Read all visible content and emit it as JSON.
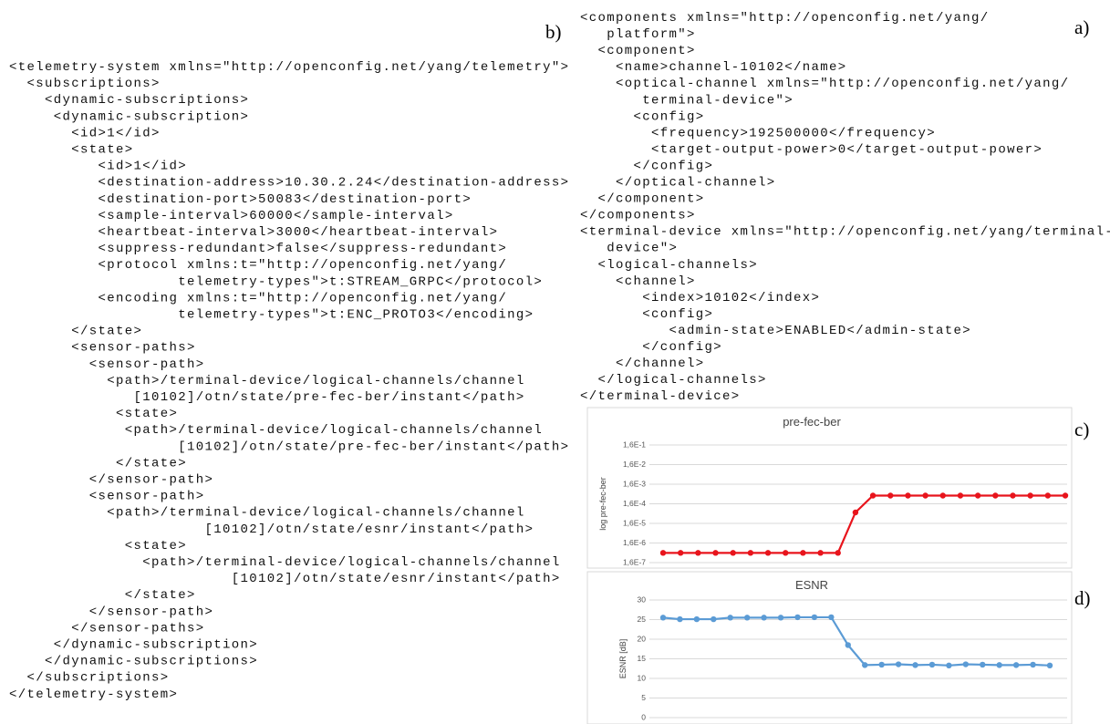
{
  "listings": [
    {
      "label": "b)",
      "lines": [
        "<telemetry-system xmlns=\"http://openconfig.net/yang/telemetry\">",
        "  <subscriptions>",
        "    <dynamic-subscriptions>",
        "     <dynamic-subscription>",
        "       <id>1</id>",
        "       <state>",
        "          <id>1</id>",
        "          <destination-address>10.30.2.24</destination-address>",
        "          <destination-port>50083</destination-port>",
        "          <sample-interval>60000</sample-interval>",
        "          <heartbeat-interval>3000</heartbeat-interval>",
        "          <suppress-redundant>false</suppress-redundant>",
        "          <protocol xmlns:t=\"http://openconfig.net/yang/",
        "                   telemetry-types\">t:STREAM_GRPC</protocol>",
        "          <encoding xmlns:t=\"http://openconfig.net/yang/",
        "                   telemetry-types\">t:ENC_PROTO3</encoding>",
        "       </state>",
        "       <sensor-paths>",
        "         <sensor-path>",
        "           <path>/terminal-device/logical-channels/channel",
        "              [10102]/otn/state/pre-fec-ber/instant</path>",
        "            <state>",
        "             <path>/terminal-device/logical-channels/channel",
        "                   [10102]/otn/state/pre-fec-ber/instant</path>",
        "            </state>",
        "         </sensor-path>",
        "         <sensor-path>",
        "           <path>/terminal-device/logical-channels/channel",
        "                      [10102]/otn/state/esnr/instant</path>",
        "             <state>",
        "               <path>/terminal-device/logical-channels/channel",
        "                         [10102]/otn/state/esnr/instant</path>",
        "             </state>",
        "         </sensor-path>",
        "       </sensor-paths>",
        "     </dynamic-subscription>",
        "    </dynamic-subscriptions>",
        "  </subscriptions>",
        "</telemetry-system>"
      ]
    },
    {
      "label": "a)",
      "lines": [
        "<components xmlns=\"http://openconfig.net/yang/",
        "   platform\">",
        "  <component>",
        "    <name>channel-10102</name>",
        "    <optical-channel xmlns=\"http://openconfig.net/yang/",
        "       terminal-device\">",
        "      <config>",
        "        <frequency>192500000</frequency>",
        "        <target-output-power>0</target-output-power>",
        "      </config>",
        "    </optical-channel>",
        "  </component>",
        "</components>",
        "<terminal-device xmlns=\"http://openconfig.net/yang/terminal-",
        "   device\">",
        "  <logical-channels>",
        "    <channel>",
        "       <index>10102</index>",
        "       <config>",
        "          <admin-state>ENABLED</admin-state>",
        "       </config>",
        "    </channel>",
        "  </logical-channels>",
        "</terminal-device>"
      ]
    }
  ],
  "chart_data": [
    {
      "type": "line",
      "label": "c)",
      "title": "pre-fec-ber",
      "ylabel": "log pre-fec-ber",
      "log_y": true,
      "grid": true,
      "color": "#e8141c",
      "categories": [
        null,
        null,
        null,
        null,
        null,
        null,
        null,
        null,
        null,
        null,
        null,
        null,
        null,
        null,
        null,
        null,
        null,
        null,
        null,
        null,
        null,
        null,
        null,
        null
      ],
      "values": [
        5e-07,
        5e-07,
        5e-07,
        5e-07,
        5e-07,
        5e-07,
        5e-07,
        5e-07,
        5e-07,
        5e-07,
        5e-07,
        5.8e-05,
        0.00042,
        0.00042,
        0.00042,
        0.00042,
        0.00042,
        0.00042,
        0.00042,
        0.00042,
        0.00042,
        0.00042,
        0.00042,
        0.00042
      ],
      "ylim": [
        1.6e-07,
        0.16
      ],
      "yticks": [
        {
          "value": 1.6e-07,
          "label": "1,6E-7"
        },
        {
          "value": 1.6e-06,
          "label": "1,6E-6"
        },
        {
          "value": 1.6e-05,
          "label": "1,6E-5"
        },
        {
          "value": 0.00016,
          "label": "1,6E-4"
        },
        {
          "value": 0.0016,
          "label": "1,6E-3"
        },
        {
          "value": 0.016,
          "label": "1,6E-2"
        },
        {
          "value": 0.16,
          "label": "1,6E-1"
        }
      ]
    },
    {
      "type": "line",
      "label": "d)",
      "title": "ESNR",
      "ylabel": "ESNR [dB]",
      "log_y": false,
      "grid": true,
      "color": "#5b9bd5",
      "categories": [
        null,
        null,
        null,
        null,
        null,
        null,
        null,
        null,
        null,
        null,
        null,
        null,
        null,
        null,
        null,
        null,
        null,
        null,
        null,
        null,
        null,
        null,
        null,
        null
      ],
      "values": [
        25.5,
        25.1,
        25.1,
        25.1,
        25.5,
        25.5,
        25.5,
        25.5,
        25.6,
        25.6,
        25.6,
        18.5,
        13.4,
        13.5,
        13.6,
        13.4,
        13.5,
        13.3,
        13.6,
        13.5,
        13.4,
        13.4,
        13.5,
        13.3
      ],
      "ylim": [
        0,
        30
      ],
      "yticks": [
        0,
        5,
        10,
        15,
        20,
        25,
        30
      ]
    }
  ]
}
